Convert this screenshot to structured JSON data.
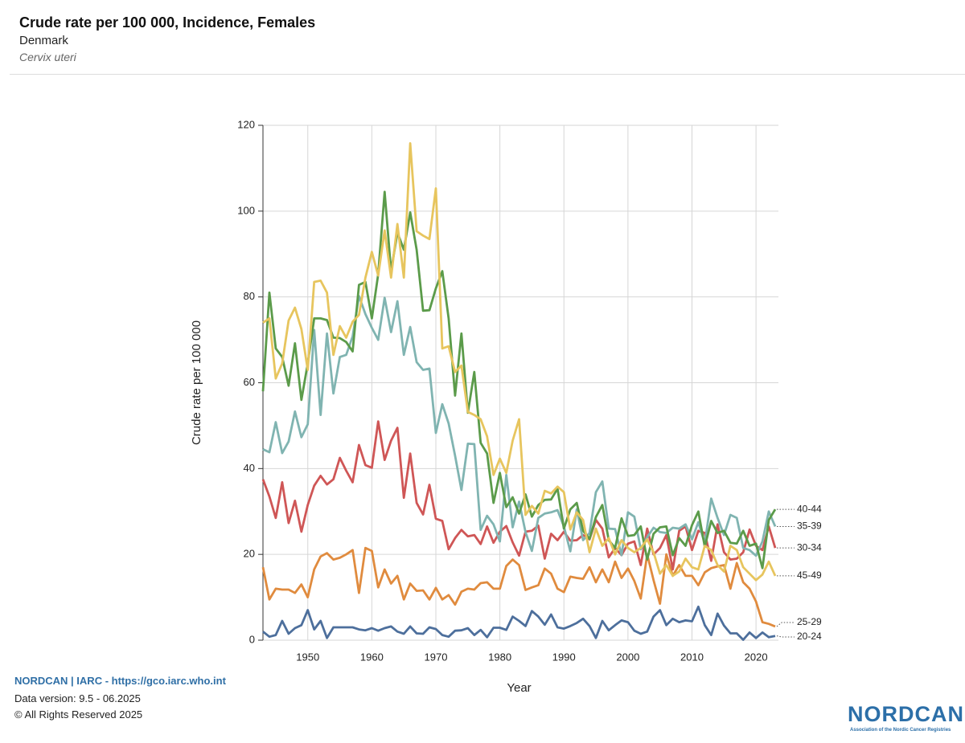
{
  "header": {
    "title": "Crude rate per 100 000, Incidence, Females",
    "subtitle": "Denmark",
    "site": "Cervix uteri"
  },
  "footer": {
    "source": "NORDCAN | IARC - https://gco.iarc.who.int",
    "version": "Data version: 9.5 - 06.2025",
    "copyright": "© All Rights Reserved 2025"
  },
  "logo": {
    "name": "NORDCAN",
    "tagline": "Association of the Nordic Cancer Registries"
  },
  "chart_data": {
    "type": "line",
    "xlabel": "Year",
    "ylabel": "Crude rate per 100 000",
    "x": [
      1943,
      1944,
      1945,
      1946,
      1947,
      1948,
      1949,
      1950,
      1951,
      1952,
      1953,
      1954,
      1955,
      1956,
      1957,
      1958,
      1959,
      1960,
      1961,
      1962,
      1963,
      1964,
      1965,
      1966,
      1967,
      1968,
      1969,
      1970,
      1971,
      1972,
      1973,
      1974,
      1975,
      1976,
      1977,
      1978,
      1979,
      1980,
      1981,
      1982,
      1983,
      1984,
      1985,
      1986,
      1987,
      1988,
      1989,
      1990,
      1991,
      1992,
      1993,
      1994,
      1995,
      1996,
      1997,
      1998,
      1999,
      2000,
      2001,
      2002,
      2003,
      2004,
      2005,
      2006,
      2007,
      2008,
      2009,
      2010,
      2011,
      2012,
      2013,
      2014,
      2015,
      2016,
      2017,
      2018,
      2019,
      2020,
      2021,
      2022,
      2023
    ],
    "xlim": [
      1943,
      2023
    ],
    "xticks": [
      1950,
      1960,
      1970,
      1980,
      1990,
      2000,
      2010,
      2020
    ],
    "ylim": [
      0,
      120
    ],
    "yticks": [
      0,
      20,
      40,
      60,
      80,
      100,
      120
    ],
    "grid": true,
    "series": [
      {
        "name": "20-24",
        "color": "#4d6f9c",
        "values": [
          2,
          0.8,
          1.2,
          4.5,
          1.5,
          2.8,
          3.5,
          7,
          2.5,
          4.5,
          0.5,
          3,
          3,
          3,
          3,
          2.5,
          2.3,
          2.8,
          2.2,
          2.8,
          3.2,
          2,
          1.5,
          3.2,
          1.6,
          1.5,
          3,
          2.6,
          1.2,
          0.8,
          2.2,
          2.3,
          2.8,
          1.2,
          2.4,
          0.7,
          2.9,
          2.9,
          2.4,
          5.5,
          4.5,
          3.3,
          6.8,
          5.5,
          3.6,
          6,
          3,
          2.7,
          3.3,
          4,
          5,
          3.3,
          0.5,
          4.5,
          2.3,
          3.5,
          4.6,
          4.2,
          2.2,
          1.5,
          2,
          5.5,
          7,
          3.5,
          5,
          4.2,
          4.6,
          4.4,
          7.8,
          3.5,
          1.2,
          6.2,
          3.4,
          1.6,
          1.6,
          0.1,
          1.8,
          0.5,
          1.8,
          0.7,
          1
        ]
      },
      {
        "name": "25-29",
        "color": "#e08b3e",
        "values": [
          17,
          9.5,
          12,
          11.8,
          11.8,
          11,
          13,
          10,
          16.5,
          19.5,
          20.3,
          18.8,
          19.2,
          20,
          21,
          11,
          21.5,
          20.8,
          12.3,
          16.5,
          13.2,
          15,
          9.5,
          13.2,
          11.5,
          11.6,
          9.5,
          12.2,
          9.5,
          10.5,
          8.3,
          11.3,
          12,
          11.8,
          13.3,
          13.5,
          12,
          12,
          17.3,
          18.8,
          17.5,
          11.7,
          12.3,
          12.8,
          16.7,
          15.5,
          12,
          11.2,
          14.8,
          14.5,
          14.3,
          17,
          13.5,
          16.5,
          13.5,
          18.3,
          14.5,
          16.7,
          13.8,
          9.7,
          20,
          14,
          8.5,
          20,
          15,
          17.5,
          15,
          15,
          12.8,
          15.8,
          16.8,
          17.2,
          17.5,
          12,
          18,
          13.5,
          12,
          9,
          4.2,
          3.8,
          3.2
        ]
      },
      {
        "name": "30-34",
        "color": "#cf5656",
        "values": [
          37.5,
          33.5,
          28.5,
          36.8,
          27.3,
          32.5,
          25.3,
          31.5,
          36,
          38.3,
          36.3,
          37.5,
          42.5,
          39.5,
          36.8,
          45.5,
          40.8,
          40.2,
          51,
          42,
          46.5,
          49.5,
          33.2,
          43.5,
          32,
          29.3,
          36.2,
          28.3,
          27.8,
          21.2,
          23.8,
          25.7,
          24.2,
          24.5,
          22.4,
          26.5,
          22.7,
          25.3,
          26.6,
          22.8,
          19.7,
          25.3,
          25.5,
          26.7,
          19,
          24.8,
          23.3,
          25.3,
          23.2,
          23.3,
          24.5,
          23.5,
          28,
          26,
          19.3,
          21.5,
          19.8,
          22.5,
          23,
          17.5,
          26,
          20,
          21.5,
          24.5,
          16.5,
          25.5,
          26.5,
          21,
          25.5,
          25,
          18.5,
          27,
          20.5,
          18.8,
          19,
          20.5,
          25.8,
          22,
          21,
          26.5,
          21.5
        ]
      },
      {
        "name": "35-39",
        "color": "#80b4b1",
        "values": [
          44.5,
          43.8,
          50.8,
          43.6,
          46.3,
          53.3,
          47.3,
          50.3,
          72.3,
          52.5,
          71.5,
          57.5,
          66,
          66.5,
          70.8,
          80.2,
          76,
          72.8,
          70,
          79.8,
          71.8,
          79,
          66.5,
          73,
          64.8,
          63,
          63.3,
          48.3,
          55,
          50.5,
          43,
          35,
          45.8,
          45.7,
          25.7,
          29,
          27,
          23,
          38.5,
          26.3,
          32.3,
          25.2,
          20.8,
          28.5,
          29.5,
          29.8,
          30.3,
          26.5,
          20.7,
          30.5,
          23.3,
          25,
          34.5,
          37,
          26,
          25.9,
          19.8,
          29.8,
          28.8,
          21.2,
          24,
          26.2,
          25.2,
          25,
          26.2,
          26,
          27,
          23.5,
          27.5,
          22.5,
          33,
          28.5,
          24.5,
          29.2,
          28.5,
          21.5,
          21,
          19.7,
          23,
          30,
          26.5
        ]
      },
      {
        "name": "40-44",
        "color": "#5b9b4a",
        "values": [
          58,
          81,
          68,
          66,
          59.3,
          69.2,
          56,
          64.5,
          75,
          75,
          74.6,
          70.5,
          70.4,
          69.5,
          67.3,
          82.8,
          83.5,
          75,
          85.3,
          104.5,
          86,
          95,
          91,
          99.7,
          91,
          76.8,
          76.9,
          82,
          86,
          75,
          57,
          71.5,
          53,
          62.5,
          46,
          43.5,
          32,
          39,
          31,
          33.3,
          29.5,
          34,
          28.8,
          31.5,
          32.7,
          32.8,
          35.3,
          26,
          30.5,
          32,
          25.5,
          23.6,
          28.7,
          31.5,
          23.3,
          21.5,
          28.4,
          24.3,
          24.5,
          26.5,
          18.8,
          24.8,
          26.3,
          26.5,
          19.8,
          23.8,
          22,
          26.8,
          30,
          21.8,
          27.8,
          25,
          25.5,
          22.7,
          22.5,
          25.5,
          22,
          22.5,
          16.8,
          28,
          30.5
        ]
      },
      {
        "name": "45-49",
        "color": "#e7c55e",
        "values": [
          74,
          75,
          61,
          64.5,
          74.5,
          77.5,
          72.5,
          63,
          83.5,
          83.8,
          81,
          66.5,
          73.2,
          70.5,
          74.2,
          75.8,
          84.5,
          90.5,
          85,
          95.5,
          84.5,
          97,
          84.5,
          115.8,
          95.3,
          94.3,
          93.5,
          105.3,
          68,
          68.5,
          62.5,
          64,
          53.2,
          52.5,
          51.5,
          47.5,
          38.5,
          42.3,
          39,
          46.5,
          51.5,
          29.2,
          31.3,
          29.5,
          34.8,
          34.2,
          35.8,
          34.5,
          25.8,
          29.8,
          28,
          20.5,
          26,
          22,
          23.8,
          20,
          23.3,
          21.5,
          20.5,
          21.5,
          23.5,
          20.5,
          15.5,
          17.5,
          15,
          16,
          19,
          17,
          16.5,
          22,
          21,
          17.5,
          16,
          22,
          21,
          17,
          15.5,
          14,
          15.3,
          18.3,
          15
        ]
      }
    ]
  }
}
